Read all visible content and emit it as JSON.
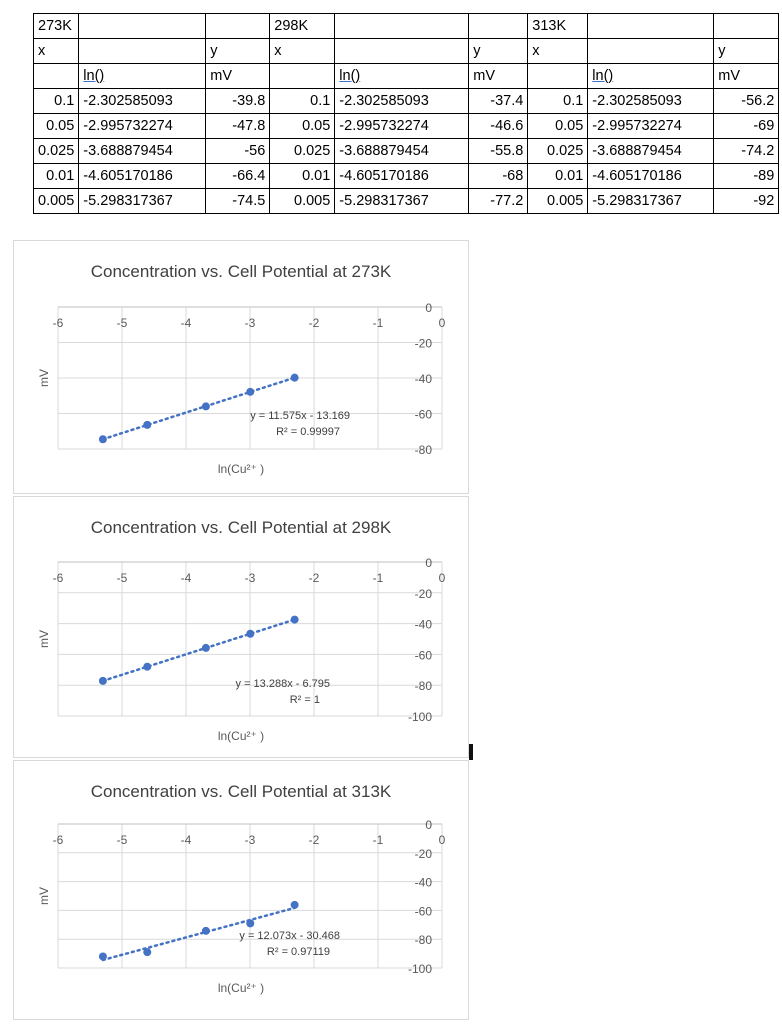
{
  "table": {
    "groups": [
      {
        "temp": "273K",
        "x_label": "x",
        "y_label": "y",
        "ln_label": "ln()",
        "unit": "mV",
        "rows": [
          [
            "0.1",
            "-2.302585093",
            "-39.8"
          ],
          [
            "0.05",
            "-2.995732274",
            "-47.8"
          ],
          [
            "0.025",
            "-3.688879454",
            "-56"
          ],
          [
            "0.01",
            "-4.605170186",
            "-66.4"
          ],
          [
            "0.005",
            "-5.298317367",
            "-74.5"
          ]
        ]
      },
      {
        "temp": "298K",
        "x_label": "x",
        "y_label": "y",
        "ln_label": "ln()",
        "unit": "mV",
        "rows": [
          [
            "0.1",
            "-2.302585093",
            "-37.4"
          ],
          [
            "0.05",
            "-2.995732274",
            "-46.6"
          ],
          [
            "0.025",
            "-3.688879454",
            "-55.8"
          ],
          [
            "0.01",
            "-4.605170186",
            "-68"
          ],
          [
            "0.005",
            "-5.298317367",
            "-77.2"
          ]
        ]
      },
      {
        "temp": "313K",
        "x_label": "x",
        "y_label": "y",
        "ln_label": "ln()",
        "unit": "mV",
        "rows": [
          [
            "0.1",
            "-2.302585093",
            "-56.2"
          ],
          [
            "0.05",
            "-2.995732274",
            "-69"
          ],
          [
            "0.025",
            "-3.688879454",
            "-74.2"
          ],
          [
            "0.01",
            "-4.605170186",
            "-89"
          ],
          [
            "0.005",
            "-5.298317367",
            "-92"
          ]
        ]
      }
    ]
  },
  "chart_data": [
    {
      "type": "scatter",
      "title": "Concentration vs. Cell Potential at 273K",
      "xlabel": "ln(Cu²⁺ )",
      "ylabel": "mV",
      "xlim": [
        -6,
        0
      ],
      "ylim": [
        -80,
        0
      ],
      "xticks": [
        "-6",
        "-5",
        "-4",
        "-3",
        "-2",
        "-1",
        "0"
      ],
      "yticks": [
        "0",
        "-20",
        "-40",
        "-60",
        "-80"
      ],
      "grid": true,
      "x": [
        -2.302585093,
        -2.995732274,
        -3.688879454,
        -4.605170186,
        -5.298317367
      ],
      "y": [
        -39.8,
        -47.8,
        -56,
        -66.4,
        -74.5
      ],
      "trendline": {
        "slope": 11.575,
        "intercept": -13.169,
        "equation": "y = 11.575x - 13.169",
        "r2": "R² = 0.99997"
      },
      "color": "#4472c4"
    },
    {
      "type": "scatter",
      "title": "Concentration vs. Cell Potential at 298K",
      "xlabel": "ln(Cu²⁺ )",
      "ylabel": "mV",
      "xlim": [
        -6,
        0
      ],
      "ylim": [
        -100,
        0
      ],
      "xticks": [
        "-6",
        "-5",
        "-4",
        "-3",
        "-2",
        "-1",
        "0"
      ],
      "yticks": [
        "0",
        "-20",
        "-40",
        "-60",
        "-80",
        "-100"
      ],
      "grid": true,
      "x": [
        -2.302585093,
        -2.995732274,
        -3.688879454,
        -4.605170186,
        -5.298317367
      ],
      "y": [
        -37.4,
        -46.6,
        -55.8,
        -68,
        -77.2
      ],
      "trendline": {
        "slope": 13.288,
        "intercept": -6.795,
        "equation": "y = 13.288x - 6.795",
        "r2": "R² = 1"
      },
      "color": "#4472c4"
    },
    {
      "type": "scatter",
      "title": "Concentration vs. Cell Potential at 313K",
      "xlabel": "ln(Cu²⁺ )",
      "ylabel": "mV",
      "xlim": [
        -6,
        0
      ],
      "ylim": [
        -100,
        0
      ],
      "xticks": [
        "-6",
        "-5",
        "-4",
        "-3",
        "-2",
        "-1",
        "0"
      ],
      "yticks": [
        "0",
        "-20",
        "-40",
        "-60",
        "-80",
        "-100"
      ],
      "grid": true,
      "x": [
        -2.302585093,
        -2.995732274,
        -3.688879454,
        -4.605170186,
        -5.298317367
      ],
      "y": [
        -56.2,
        -69,
        -74.2,
        -89,
        -92
      ],
      "trendline": {
        "slope": 12.073,
        "intercept": -30.468,
        "equation": "y = 12.073x - 30.468",
        "r2": "R² = 0.97119"
      },
      "color": "#4472c4"
    }
  ]
}
